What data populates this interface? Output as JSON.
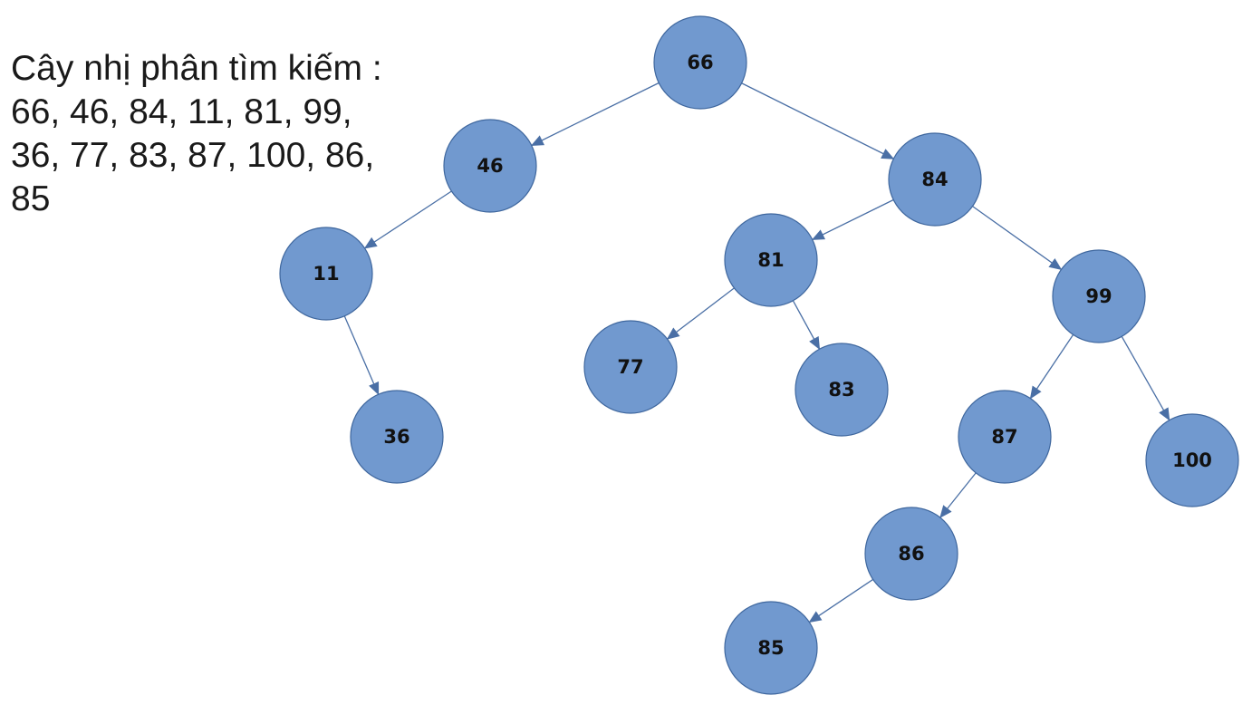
{
  "caption": {
    "title": "Cây nhị phân tìm kiếm :",
    "lines": [
      "66, 46, 84, 11, 81, 99,",
      "36, 77, 83, 87, 100, 86,",
      "85"
    ]
  },
  "colors": {
    "node_fill": "#7199cf",
    "node_stroke": "#3f679e",
    "edge": "#4a6fa5",
    "text": "#111111"
  },
  "tree": {
    "nodes": [
      "66",
      "46",
      "84",
      "11",
      "36",
      "81",
      "99",
      "77",
      "83",
      "87",
      "100",
      "86",
      "85"
    ],
    "edges": [
      [
        "66",
        "46"
      ],
      [
        "66",
        "84"
      ],
      [
        "46",
        "11"
      ],
      [
        "11",
        "36"
      ],
      [
        "84",
        "81"
      ],
      [
        "84",
        "99"
      ],
      [
        "81",
        "77"
      ],
      [
        "81",
        "83"
      ],
      [
        "99",
        "87"
      ],
      [
        "99",
        "100"
      ],
      [
        "87",
        "86"
      ],
      [
        "86",
        "85"
      ]
    ]
  }
}
